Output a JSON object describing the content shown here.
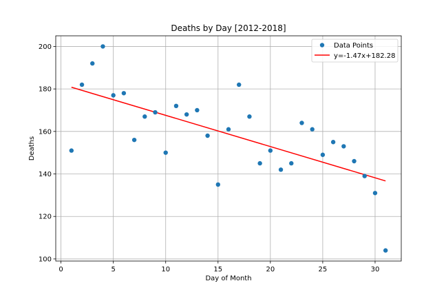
{
  "chart_data": {
    "type": "scatter",
    "title": "Deaths by Day [2012-2018]",
    "xlabel": "Day of Month",
    "ylabel": "Deaths",
    "xlim": [
      -0.5,
      32.5
    ],
    "ylim": [
      99,
      205
    ],
    "xticks": [
      0,
      5,
      10,
      15,
      20,
      25,
      30
    ],
    "yticks": [
      100,
      120,
      140,
      160,
      180,
      200
    ],
    "grid": true,
    "legend_position": "top-right",
    "colors": {
      "points": "#1f77b4",
      "fit_line": "#ff0000",
      "grid": "#b0b0b0"
    },
    "series": [
      {
        "name": "Data Points",
        "kind": "scatter",
        "x": [
          1,
          2,
          3,
          4,
          5,
          6,
          7,
          8,
          9,
          10,
          11,
          12,
          13,
          14,
          15,
          16,
          17,
          18,
          19,
          20,
          21,
          22,
          23,
          24,
          25,
          26,
          27,
          28,
          29,
          30,
          31
        ],
        "y": [
          151,
          182,
          192,
          200,
          177,
          178,
          156,
          167,
          169,
          150,
          172,
          168,
          170,
          158,
          135,
          161,
          182,
          167,
          145,
          151,
          142,
          145,
          164,
          161,
          149,
          155,
          153,
          146,
          139,
          131,
          104
        ]
      },
      {
        "name": "y=-1.47x+182.28",
        "kind": "line",
        "slope": -1.47,
        "intercept": 182.28,
        "x": [
          1,
          31
        ]
      }
    ]
  }
}
